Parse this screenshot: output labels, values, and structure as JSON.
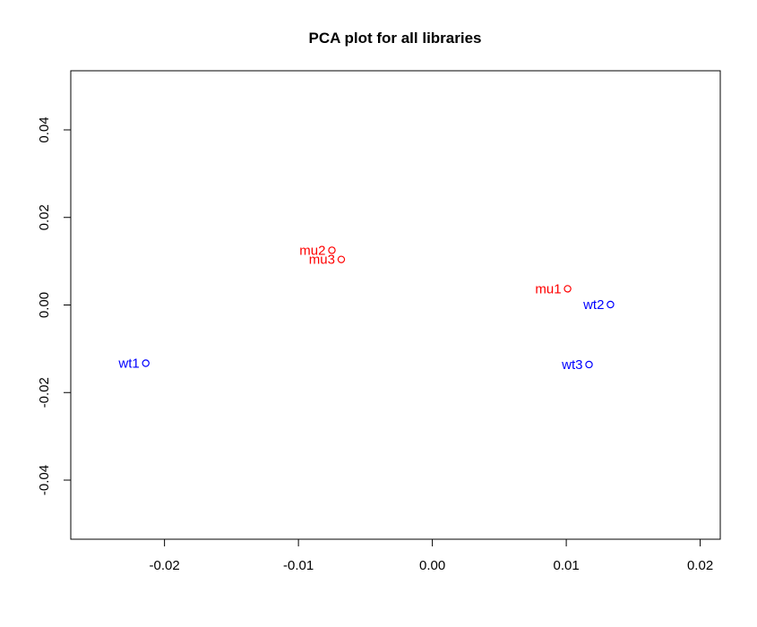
{
  "chart_data": {
    "type": "scatter",
    "title": "PCA plot for all libraries",
    "xlabel": "",
    "ylabel": "",
    "xlim": [
      -0.027,
      0.0215
    ],
    "ylim": [
      -0.0535,
      0.0535
    ],
    "x_ticks": [
      -0.02,
      -0.01,
      0.0,
      0.01,
      0.02
    ],
    "x_tick_labels": [
      "-0.02",
      "-0.01",
      "0.00",
      "0.01",
      "0.02"
    ],
    "y_ticks": [
      -0.04,
      -0.02,
      0.0,
      0.02,
      0.04
    ],
    "y_tick_labels": [
      "-0.04",
      "-0.02",
      "0.00",
      "0.02",
      "0.04"
    ],
    "grid": false,
    "legend": "none",
    "groups": [
      {
        "color": "#ff0000",
        "points": [
          {
            "label": "mu1",
            "x": 0.0101,
            "y": 0.0037
          },
          {
            "label": "mu2",
            "x": -0.0075,
            "y": 0.0125
          },
          {
            "label": "mu3",
            "x": -0.0068,
            "y": 0.0104
          }
        ]
      },
      {
        "color": "#0000ff",
        "points": [
          {
            "label": "wt1",
            "x": -0.0214,
            "y": -0.0133
          },
          {
            "label": "wt2",
            "x": 0.0133,
            "y": 0.0001
          },
          {
            "label": "wt3",
            "x": 0.0117,
            "y": -0.0136
          }
        ]
      }
    ]
  }
}
